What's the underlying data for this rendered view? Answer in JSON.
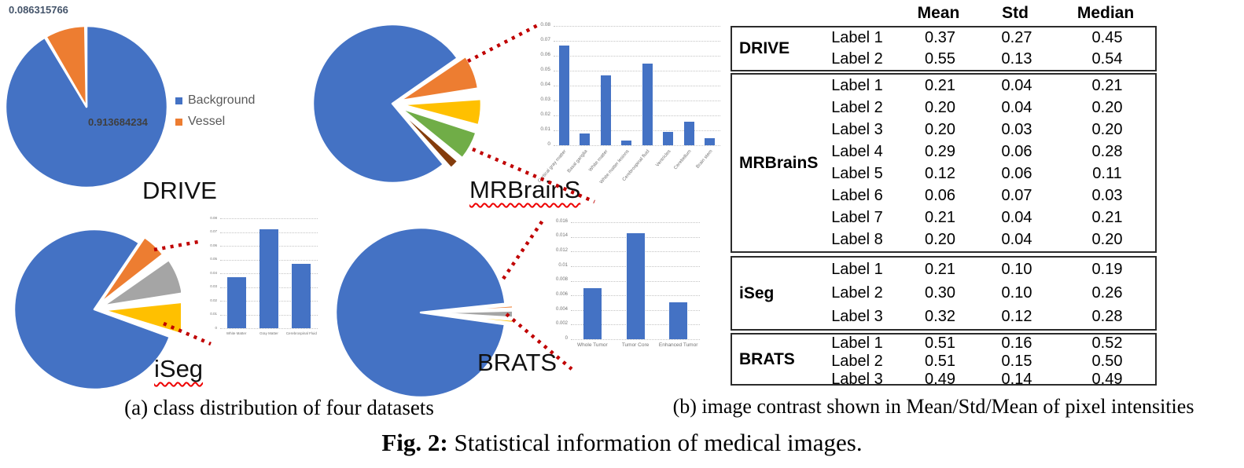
{
  "panel_a": {
    "caption": "(a) class distribution of four datasets",
    "dataset_titles": {
      "drive": "DRIVE",
      "mrbrains": "MRBrainS",
      "iseg": "iSeg",
      "brats": "BRATS"
    }
  },
  "panel_b": {
    "caption": "(b) image contrast shown in Mean/Std/Mean of pixel intensities",
    "table": {
      "headers": [
        "Mean",
        "Std",
        "Median"
      ],
      "sections": [
        {
          "name": "DRIVE",
          "rows": [
            [
              "Label 1",
              "0.37",
              "0.27",
              "0.45"
            ],
            [
              "Label 2",
              "0.55",
              "0.13",
              "0.54"
            ]
          ]
        },
        {
          "name": "MRBrainS",
          "rows": [
            [
              "Label 1",
              "0.21",
              "0.04",
              "0.21"
            ],
            [
              "Label 2",
              "0.20",
              "0.04",
              "0.20"
            ],
            [
              "Label 3",
              "0.20",
              "0.03",
              "0.20"
            ],
            [
              "Label 4",
              "0.29",
              "0.06",
              "0.28"
            ],
            [
              "Label 5",
              "0.12",
              "0.06",
              "0.11"
            ],
            [
              "Label 6",
              "0.06",
              "0.07",
              "0.03"
            ],
            [
              "Label 7",
              "0.21",
              "0.04",
              "0.21"
            ],
            [
              "Label 8",
              "0.20",
              "0.04",
              "0.20"
            ]
          ]
        },
        {
          "name": "iSeg",
          "rows": [
            [
              "Label 1",
              "0.21",
              "0.10",
              "0.19"
            ],
            [
              "Label 2",
              "0.30",
              "0.10",
              "0.26"
            ],
            [
              "Label 3",
              "0.32",
              "0.12",
              "0.28"
            ]
          ]
        },
        {
          "name": "BRATS",
          "rows": [
            [
              "Label 1",
              "0.51",
              "0.16",
              "0.52"
            ],
            [
              "Label 2",
              "0.51",
              "0.15",
              "0.50"
            ],
            [
              "Label 3",
              "0.49",
              "0.14",
              "0.49"
            ]
          ]
        }
      ]
    }
  },
  "figure_caption": {
    "label": "Fig. 2:",
    "text": " Statistical information of medical images."
  },
  "colors": {
    "office_blue": "#4472C4",
    "office_orange": "#ED7D31",
    "office_gray": "#A5A5A5",
    "office_yellow": "#FFC000",
    "office_green": "#70AD47",
    "office_brown": "#843C0C",
    "connector_red": "#C00000",
    "underline_red": "#EE0000",
    "legend_text": "#595959",
    "grid_gray": "#C4C4C4"
  },
  "chart_data": [
    {
      "id": "drive_pie",
      "type": "pie",
      "title": "DRIVE",
      "slices": [
        {
          "label": "Background",
          "value": 0.913684234,
          "color": "#4472C4",
          "start": 0,
          "end": 329,
          "explode": 0
        },
        {
          "label": "Vessel",
          "value": 0.086315766,
          "color": "#ED7D31",
          "start": 330,
          "end": 359,
          "explode": 0
        }
      ],
      "data_labels": {
        "vessel": "0.086315766",
        "background": "0.913684234"
      },
      "legend": {
        "position": "right",
        "entries": [
          {
            "label": "Background",
            "color": "#4472C4"
          },
          {
            "label": "Vessel",
            "color": "#ED7D31"
          }
        ]
      }
    },
    {
      "id": "mrbrains_pie",
      "type": "pie",
      "title": "MRBrainS",
      "slices": [
        {
          "value": 0.764,
          "color": "#4472C4",
          "start": 140,
          "end": 415,
          "explode": 0
        },
        {
          "value": 0.069,
          "color": "#ED7D31",
          "start": 56,
          "end": 81,
          "explode": 10
        },
        {
          "value": 0.053,
          "color": "#FFC000",
          "start": 86,
          "end": 105,
          "explode": 12
        },
        {
          "value": 0.058,
          "color": "#70AD47",
          "start": 108,
          "end": 129,
          "explode": 12
        },
        {
          "value": 0.019,
          "color": "#843C0C",
          "start": 131,
          "end": 138,
          "explode": 10
        }
      ]
    },
    {
      "id": "iseg_pie",
      "type": "pie",
      "title": "iSeg",
      "slices": [
        {
          "value": 0.789,
          "color": "#4472C4",
          "start": 110,
          "end": 394,
          "explode": 0
        },
        {
          "value": 0.05,
          "color": "#ED7D31",
          "start": 34,
          "end": 52,
          "explode": 10
        },
        {
          "value": 0.072,
          "color": "#A5A5A5",
          "start": 55,
          "end": 81,
          "explode": 12
        },
        {
          "value": 0.064,
          "color": "#FFC000",
          "start": 84,
          "end": 107,
          "explode": 12
        }
      ]
    },
    {
      "id": "brats_pie",
      "type": "pie",
      "title": "BRATS",
      "slices": [
        {
          "value": 0.961,
          "color": "#4472C4",
          "start": 98,
          "end": 444,
          "explode": 0
        },
        {
          "value": 0.006,
          "color": "#ED7D31",
          "start": 85.5,
          "end": 87.5,
          "explode": 12
        },
        {
          "value": 0.014,
          "color": "#A5A5A5",
          "start": 88.5,
          "end": 93.5,
          "explode": 14
        },
        {
          "value": 0.004,
          "color": "#FFC000",
          "start": 94.5,
          "end": 96.5,
          "explode": 12
        }
      ]
    },
    {
      "id": "mrbrains_bars",
      "type": "bar",
      "grid": true,
      "categories": [
        "Cortical gray matter",
        "Basal ganglia",
        "White matter",
        "White matter lesions",
        "Cerebrospinal fluid",
        "Ventricles",
        "Cerebellum",
        "Brain stem"
      ],
      "values": [
        0.067,
        0.008,
        0.047,
        0.003,
        0.055,
        0.009,
        0.016,
        0.005
      ],
      "ylim": [
        0,
        0.08
      ],
      "ytick_step": 0.01,
      "bar_color": "#4472C4"
    },
    {
      "id": "iseg_bars",
      "type": "bar",
      "grid": true,
      "categories": [
        "White Matter",
        "Gray Matter",
        "Cerebrospinal Fluid"
      ],
      "values": [
        0.037,
        0.072,
        0.047
      ],
      "ylim": [
        0,
        0.08
      ],
      "ytick_step": 0.01,
      "bar_color": "#4472C4"
    },
    {
      "id": "brats_bars",
      "type": "bar",
      "grid": true,
      "categories": [
        "Whole Tumor",
        "Tumor Core",
        "Enhanced Tumor"
      ],
      "values": [
        0.007,
        0.0145,
        0.005
      ],
      "ylim": [
        0,
        0.016
      ],
      "ytick_step": 0.002,
      "bar_color": "#4472C4"
    }
  ]
}
